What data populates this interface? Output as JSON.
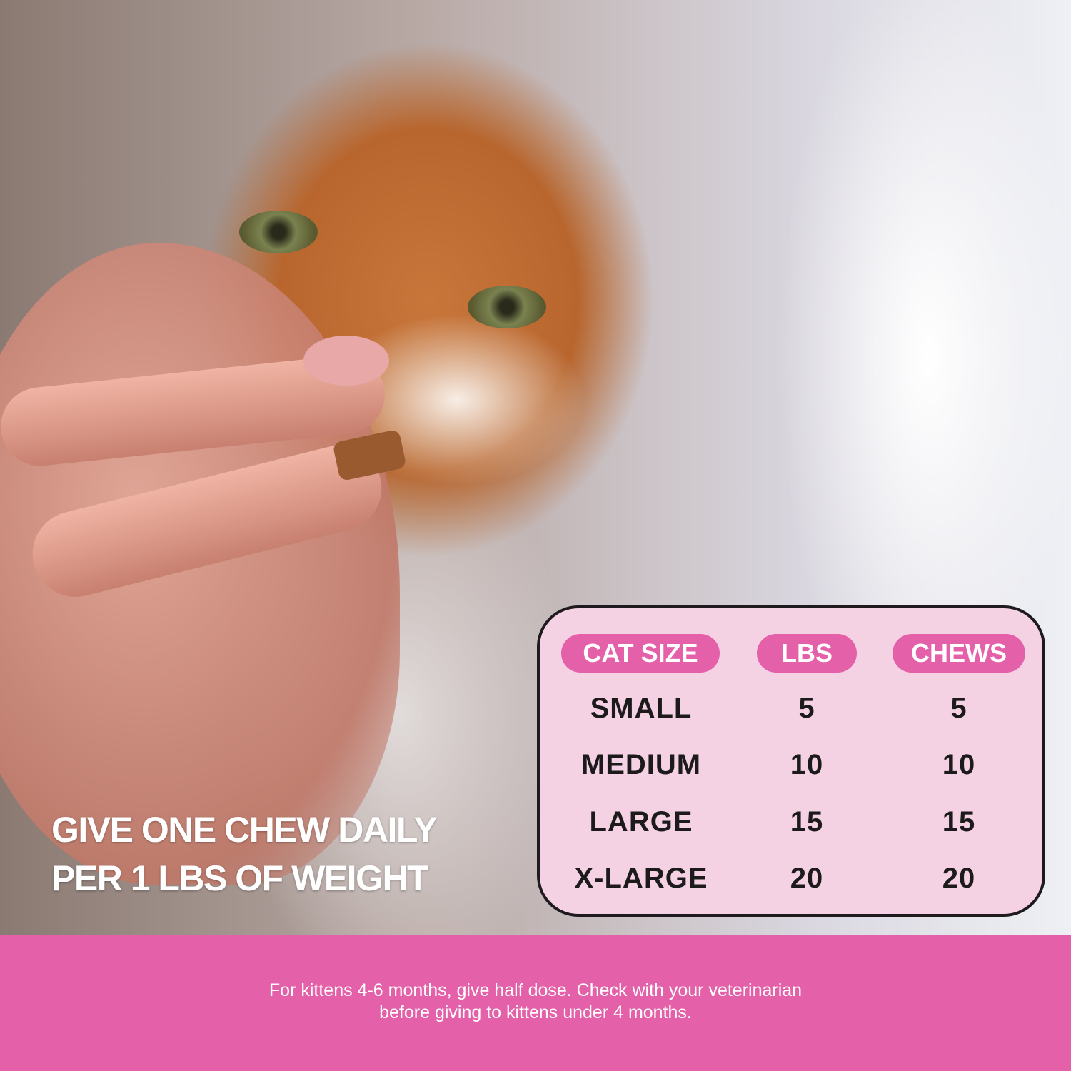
{
  "slogan": {
    "line1": "GIVE ONE CHEW DAILY",
    "line2": "PER 1 LBS OF WEIGHT"
  },
  "table": {
    "headers": [
      "CAT SIZE",
      "LBS",
      "CHEWS"
    ],
    "rows": [
      [
        "SMALL",
        "5",
        "5"
      ],
      [
        "MEDIUM",
        "10",
        "10"
      ],
      [
        "LARGE",
        "15",
        "15"
      ],
      [
        "X-LARGE",
        "20",
        "20"
      ]
    ]
  },
  "footer": {
    "line1": "For kittens 4-6 months, give half dose. Check with your veterinarian",
    "line2": "before giving to kittens under 4 months."
  },
  "colors": {
    "accent_pink": "#e460a9",
    "table_bg": "#f5d2e3",
    "text_dark": "#1c1a1b"
  }
}
